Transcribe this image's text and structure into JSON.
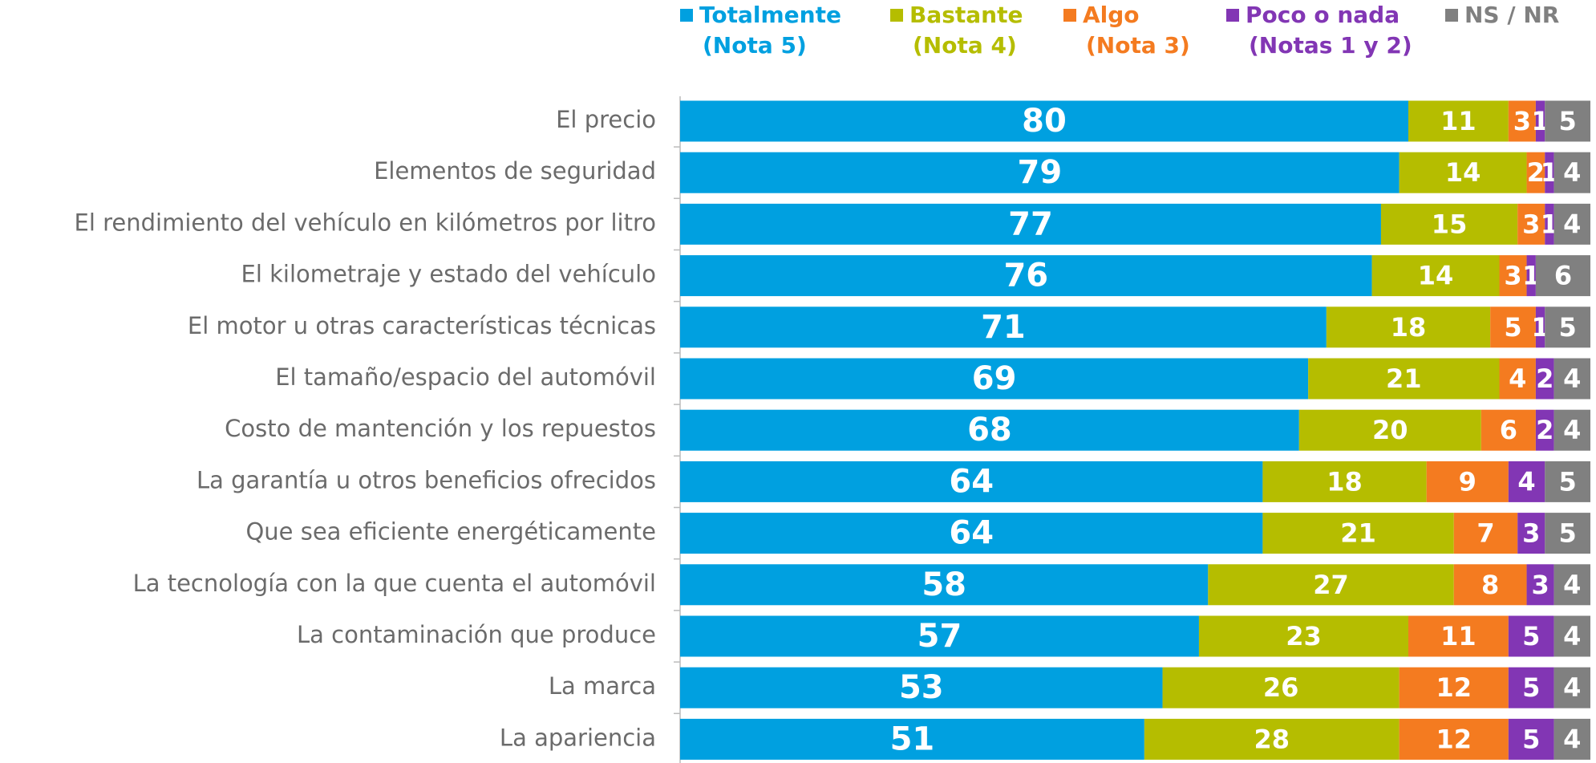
{
  "chart_data": {
    "type": "stacked_bar_horizontal",
    "categories": [
      "El precio",
      "Elementos de seguridad",
      "El rendimiento del vehículo en kilómetros por litro",
      "El kilometraje y estado del vehículo",
      "El motor u otras características técnicas",
      "El tamaño/espacio del automóvil",
      "Costo de mantención y los repuestos",
      "La garantía u otros beneficios ofrecidos",
      "Que sea eficiente energéticamente",
      "La tecnología con la que cuenta el automóvil",
      "La contaminación que produce",
      "La marca",
      "La apariencia"
    ],
    "series": [
      {
        "name": "Totalmente\n(Nota 5)",
        "color": "#00a0e0",
        "values": [
          80,
          79,
          77,
          76,
          71,
          69,
          68,
          64,
          64,
          58,
          57,
          53,
          51
        ]
      },
      {
        "name": "Bastante\n(Nota 4)",
        "color": "#b5bd00",
        "values": [
          11,
          14,
          15,
          14,
          18,
          21,
          20,
          18,
          21,
          27,
          23,
          26,
          28
        ]
      },
      {
        "name": "Algo\n(Nota 3)",
        "color": "#f47b20",
        "values": [
          3,
          2,
          3,
          3,
          5,
          4,
          6,
          9,
          7,
          8,
          11,
          12,
          12
        ]
      },
      {
        "name": "Poco o nada\n(Notas 1 y 2)",
        "color": "#8236b4",
        "values": [
          1,
          1,
          1,
          1,
          1,
          2,
          2,
          4,
          3,
          3,
          5,
          5,
          5
        ]
      },
      {
        "name": "NS / NR",
        "color": "#808080",
        "values": [
          5,
          4,
          4,
          6,
          5,
          4,
          4,
          5,
          5,
          4,
          4,
          4,
          4
        ]
      }
    ],
    "xlim": [
      0,
      100
    ]
  }
}
